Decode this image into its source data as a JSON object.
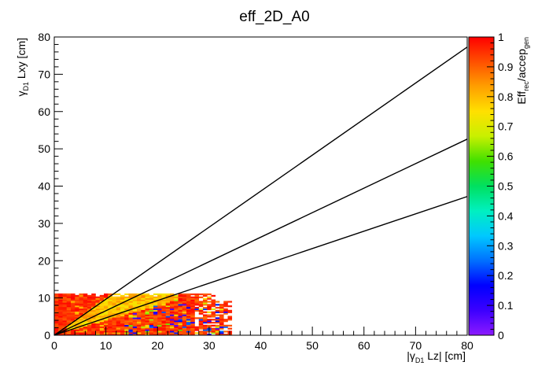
{
  "chart_data": {
    "type": "heatmap",
    "title": "eff_2D_A0",
    "xlabel": {
      "main": "|γ",
      "sub": "D1",
      "rest": " Lz| [cm]"
    },
    "ylabel": {
      "main": "γ",
      "sub": "D1",
      "rest": " Lxy [cm]"
    },
    "zlabel": {
      "main": "Eff",
      "sub1": "rec",
      "mid": "/accep",
      "sub2": "gen"
    },
    "xlim": [
      0,
      80
    ],
    "ylim": [
      0,
      80
    ],
    "zlim": [
      0,
      1
    ],
    "x_ticks": [
      "0",
      "10",
      "20",
      "30",
      "40",
      "50",
      "60",
      "70",
      "80"
    ],
    "y_ticks": [
      "0",
      "10",
      "20",
      "30",
      "40",
      "50",
      "60",
      "70",
      "80"
    ],
    "z_ticks": [
      "0",
      "0.1",
      "0.2",
      "0.3",
      "0.4",
      "0.5",
      "0.6",
      "0.7",
      "0.8",
      "0.9",
      "1"
    ],
    "colormap": [
      "#8c1aff",
      "#3c00ff",
      "#0000ff",
      "#0070ff",
      "#00c8ff",
      "#00f0c0",
      "#00e060",
      "#40e000",
      "#c8f000",
      "#ffe000",
      "#ffa000",
      "#ff5000",
      "#ff0000"
    ],
    "line_color": "#000000",
    "lines": [
      {
        "name": "upper",
        "x": [
          0,
          80
        ],
        "y": [
          0,
          77.3
        ]
      },
      {
        "name": "middle",
        "x": [
          0,
          80
        ],
        "y": [
          0,
          52.6
        ]
      },
      {
        "name": "lower",
        "x": [
          0,
          80
        ],
        "y": [
          0,
          37.2
        ]
      }
    ],
    "heatmap_region": {
      "x_range": [
        0,
        34.5
      ],
      "y_range": [
        0,
        11
      ],
      "bin_width": 0.8,
      "bin_height": 0.4,
      "description_regions": [
        {
          "x": [
            0,
            34.5
          ],
          "y": [
            0,
            11
          ],
          "typical_eff": 0.95,
          "note": "mostly red/orange"
        },
        {
          "x": [
            3,
            25
          ],
          "y": [
            2,
            10
          ],
          "typical_eff": 0.78,
          "note": "yellow-green band along the lines"
        }
      ]
    }
  }
}
